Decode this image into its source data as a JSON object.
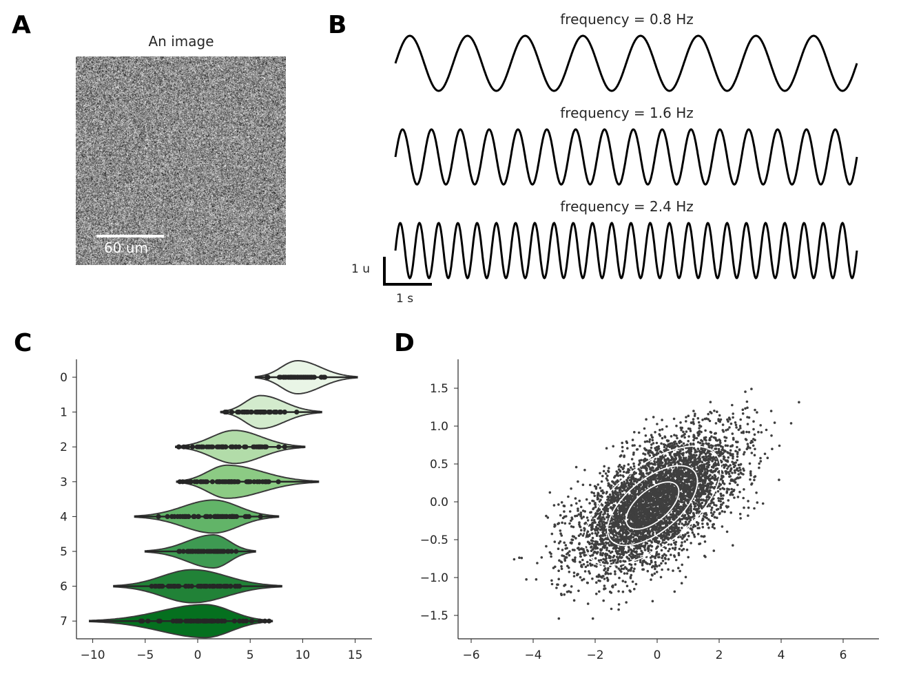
{
  "panels": {
    "a": {
      "label": "A",
      "title": "An image",
      "scalebar_label": "60 um"
    },
    "b": {
      "label": "B",
      "scalebar_y": "1 u",
      "scalebar_x": "1 s"
    },
    "c": {
      "label": "C"
    },
    "d": {
      "label": "D"
    }
  },
  "chart_data": [
    {
      "type": "image",
      "panel": "A",
      "title": "An image",
      "colormap": "gray",
      "content": "random noise",
      "scalebar": "60 um"
    },
    {
      "type": "line",
      "panel": "B",
      "axes_hidden": true,
      "scalebars": {
        "y": "1 u",
        "x": "1 s"
      },
      "x_range_s": [
        0,
        10
      ],
      "amplitude": 1,
      "series": [
        {
          "title": "frequency = 0.8 Hz",
          "frequency": 0.8
        },
        {
          "title": "frequency = 1.6 Hz",
          "frequency": 1.6
        },
        {
          "title": "frequency = 2.4 Hz",
          "frequency": 2.4
        }
      ],
      "color": "#000000"
    },
    {
      "type": "violin",
      "panel": "C",
      "orientation": "horizontal",
      "categories": [
        "0",
        "1",
        "2",
        "3",
        "4",
        "5",
        "6",
        "7"
      ],
      "xlim": [
        -11.5,
        16.6
      ],
      "xticks": [
        "−10",
        "−5",
        "0",
        "5",
        "10",
        "15"
      ],
      "xtick_values": [
        -10,
        -5,
        0,
        5,
        10,
        15
      ],
      "palette": "Greens",
      "inner": "points",
      "violins": [
        {
          "category": "0",
          "min": 5.5,
          "max": 15.2,
          "mode": 9.5,
          "color": "#e9f5e6"
        },
        {
          "category": "1",
          "min": 2.2,
          "max": 11.8,
          "mode": 6.0,
          "color": "#d3ebcd"
        },
        {
          "category": "2",
          "min": -2.1,
          "max": 10.2,
          "mode": 3.5,
          "color": "#b2dca9"
        },
        {
          "category": "3",
          "min": -2.0,
          "max": 11.5,
          "mode": 2.8,
          "color": "#8ccb84"
        },
        {
          "category": "4",
          "min": -6.0,
          "max": 7.7,
          "mode": 1.5,
          "color": "#62b468"
        },
        {
          "category": "5",
          "min": -5.0,
          "max": 5.5,
          "mode": 1.5,
          "color": "#3e9a52"
        },
        {
          "category": "6",
          "min": -8.0,
          "max": 8.0,
          "mode": -0.5,
          "color": "#218237"
        },
        {
          "category": "7",
          "min": -10.3,
          "max": 7.1,
          "mode": 0.7,
          "color": "#05701f"
        }
      ]
    },
    {
      "type": "scatter",
      "panel": "D",
      "xlim": [
        -6.4,
        7.2
      ],
      "ylim": [
        -1.81,
        1.88
      ],
      "xticks": [
        "−6",
        "−4",
        "−2",
        "0",
        "2",
        "4",
        "6"
      ],
      "xtick_values": [
        -6,
        -4,
        -2,
        0,
        2,
        4,
        6
      ],
      "yticks": [
        "−1.5",
        "−1.0",
        "−0.5",
        "0.0",
        "0.5",
        "1.0",
        "1.5"
      ],
      "ytick_values": [
        -1.5,
        -1.0,
        -0.5,
        0.0,
        0.5,
        1.0,
        1.5
      ],
      "point_color": "#3f3f3f",
      "contour_color": "#ffffff",
      "distribution": {
        "x_std": 1.3,
        "y_std": 0.45,
        "correlation": 0.6
      },
      "contour_levels": 3
    }
  ]
}
